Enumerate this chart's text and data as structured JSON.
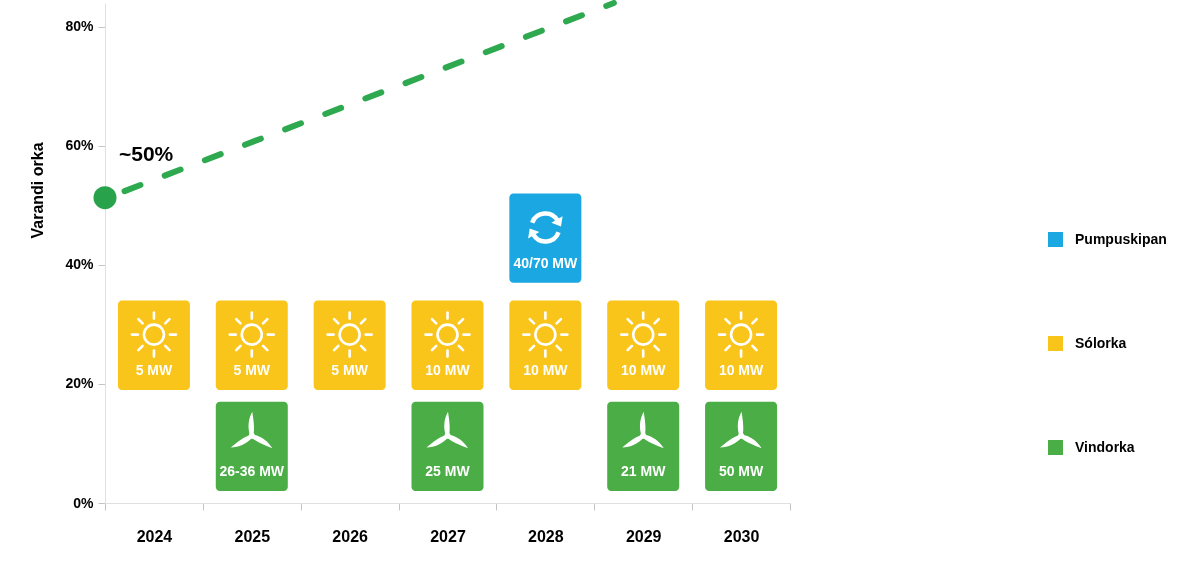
{
  "chart_data": {
    "type": "bar",
    "ylabel": "Varandi orka",
    "x": [
      2024,
      2025,
      2026,
      2027,
      2028,
      2029,
      2030
    ],
    "xlim": [
      2023.5,
      2030.5
    ],
    "xticks": [
      {
        "value": 2023.5,
        "label": null
      },
      2024,
      {
        "value": 2024.5,
        "label": null
      },
      2025,
      {
        "value": 2025.5,
        "label": null
      },
      2026,
      {
        "value": 2026.5,
        "label": null
      },
      2027,
      {
        "value": 2027.5,
        "label": null
      },
      2028,
      {
        "value": 2028.5,
        "label": null
      },
      2029,
      {
        "value": 2029.5,
        "label": null
      },
      2030,
      {
        "value": 2030.5,
        "label": null
      }
    ],
    "ylim": [
      0,
      84
    ],
    "yticks": [
      {
        "value": 0,
        "label": "0%"
      },
      {
        "value": 20,
        "label": "20%"
      },
      {
        "value": 40,
        "label": "40%"
      },
      {
        "value": 60,
        "label": "60%"
      },
      {
        "value": 80,
        "label": "80%"
      }
    ],
    "legend": "right",
    "series": [
      {
        "name": "Pumpuskipan",
        "color": "#1ba7e1",
        "base": [
          null,
          null,
          null,
          null,
          37,
          null,
          null
        ],
        "values": [
          null,
          null,
          null,
          null,
          15,
          null,
          null
        ]
      },
      {
        "name": "Sólorka",
        "color": "#f9c51b",
        "base": [
          19,
          19,
          19,
          19,
          19,
          19,
          19
        ],
        "values": [
          15,
          15,
          15,
          15,
          15,
          15,
          15
        ]
      },
      {
        "name": "Vindorka",
        "color": "#4aad45",
        "base": [
          null,
          2,
          null,
          2,
          null,
          2,
          2
        ],
        "values": [
          null,
          15,
          null,
          15,
          null,
          15,
          15
        ]
      },
      {
        "type": "line",
        "color": "#2ea94f",
        "x": [
          2023.7,
          2028.7
        ],
        "values": [
          52.4,
          84
        ],
        "line_style": "dashed"
      },
      {
        "type": "scatter",
        "color": "#29a34b",
        "x": [
          2023.5
        ],
        "values": [
          51.3
        ],
        "marker": "circle"
      }
    ],
    "annotations": [
      {
        "text": "~50%",
        "x": 2023.5,
        "y": 51.3
      },
      {
        "text": "40/70 MW",
        "x": 2028,
        "y": 37
      },
      {
        "text": "5 MW",
        "x": 2024,
        "y": 19
      },
      {
        "text": "5 MW",
        "x": 2025,
        "y": 19
      },
      {
        "text": "5 MW",
        "x": 2026,
        "y": 19
      },
      {
        "text": "10 MW",
        "x": 2027,
        "y": 19
      },
      {
        "text": "10 MW",
        "x": 2028,
        "y": 19
      },
      {
        "text": "10 MW",
        "x": 2029,
        "y": 19
      },
      {
        "text": "10 MW",
        "x": 2030,
        "y": 19
      },
      {
        "text": "26-36 MW",
        "x": 2025,
        "y": 2
      },
      {
        "text": "25 MW",
        "x": 2027,
        "y": 2
      },
      {
        "text": "21 MW",
        "x": 2029,
        "y": 2
      },
      {
        "text": "50 MW",
        "x": 2030,
        "y": 2
      }
    ]
  }
}
